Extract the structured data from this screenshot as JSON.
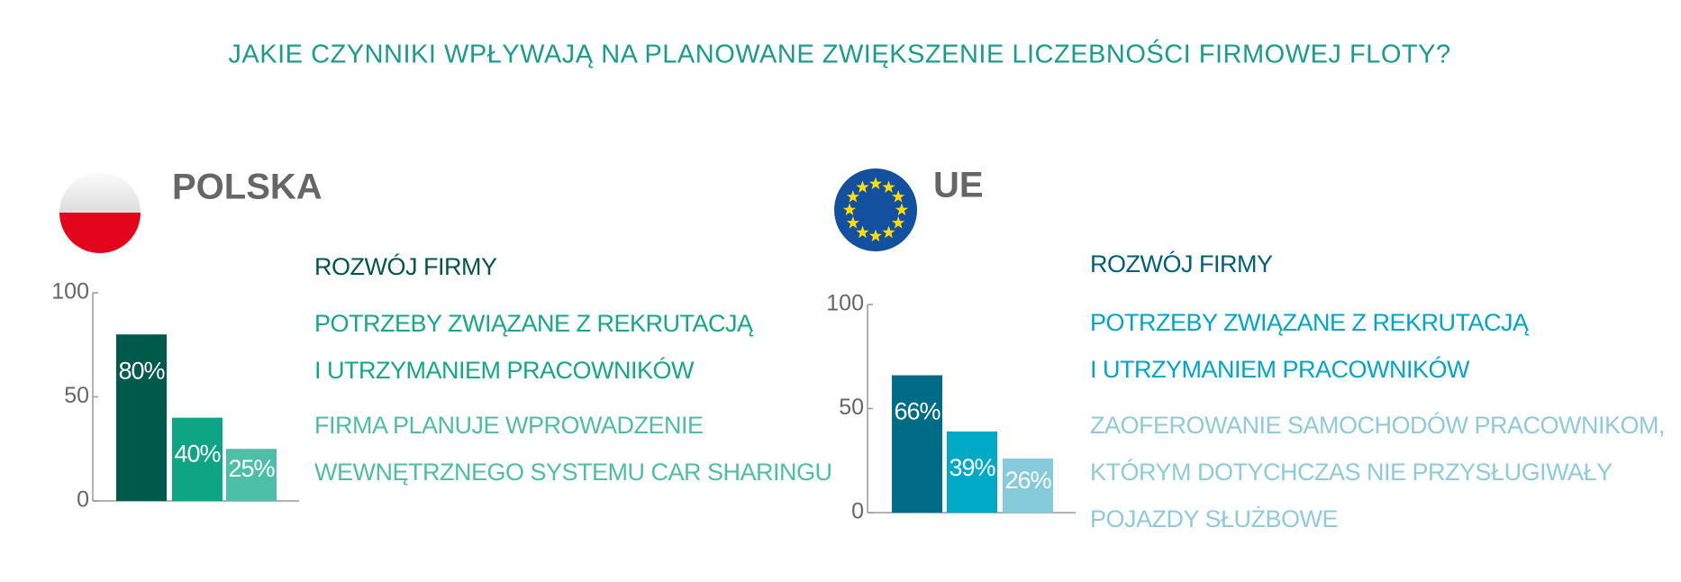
{
  "title": "JAKIE CZYNNIKI WPŁYWAJĄ NA PLANOWANE ZWIĘKSZENIE LICZEBNOŚCI FIRMOWEJ FLOTY?",
  "chart_data": [
    {
      "type": "bar",
      "title": "POLSKA",
      "categories": [
        "ROZWÓJ FIRMY",
        "POTRZEBY ZWIĄZANE Z REKRUTACJĄ\nI UTRZYMANIEM PRACOWNIKÓW",
        "FIRMA PLANUJE WPROWADZENIE\nWEWNĘTRZNEGO SYSTEMU CAR SHARINGU"
      ],
      "values": [
        80,
        40,
        25
      ],
      "value_labels": [
        "80%",
        "40%",
        "25%"
      ],
      "colors": [
        "#005a4b",
        "#0ea585",
        "#4dbfa8"
      ],
      "ylim": [
        0,
        100
      ],
      "yticks": [
        0,
        50,
        100
      ]
    },
    {
      "type": "bar",
      "title": "UE",
      "categories": [
        "ROZWÓJ FIRMY",
        "POTRZEBY ZWIĄZANE Z REKRUTACJĄ\nI UTRZYMANIEM PRACOWNIKÓW",
        "ZAOFEROWANIE SAMOCHODÓW PRACOWNIKOM,\nKTÓRYM DOTYCHCZAS NIE PRZYSŁUGIWAŁY\nPOJAZDY SŁUŻBOWE"
      ],
      "values": [
        66,
        39,
        26
      ],
      "value_labels": [
        "66%",
        "39%",
        "26%"
      ],
      "colors": [
        "#006b85",
        "#00a9c6",
        "#85cbdc"
      ],
      "ylim": [
        0,
        100
      ],
      "yticks": [
        0,
        50,
        100
      ]
    }
  ]
}
